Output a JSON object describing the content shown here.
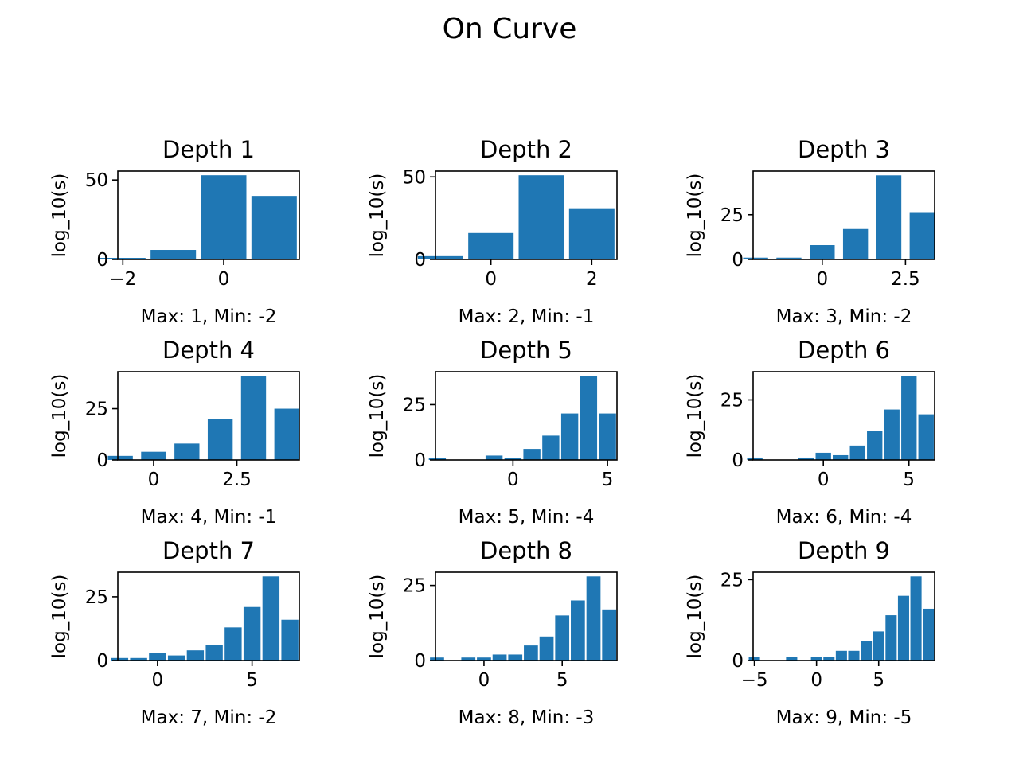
{
  "figure": {
    "title": "On Curve"
  },
  "chart_data": [
    {
      "type": "bar",
      "title": "Depth 1",
      "xlabel": "Max: 1, Min: -2",
      "ylabel": "log_10(s)",
      "x": [
        -2,
        -1,
        0,
        1
      ],
      "values": [
        1,
        6,
        53,
        40
      ],
      "bar_width": 0.9,
      "xlim": [
        -2.1,
        1.5
      ],
      "ylim": [
        0,
        55.6
      ],
      "xticks": [
        -2,
        0
      ],
      "yticks": [
        0,
        50
      ],
      "color": "#1f77b4"
    },
    {
      "type": "bar",
      "title": "Depth 2",
      "xlabel": "Max: 2, Min: -1",
      "ylabel": "log_10(s)",
      "x": [
        -1,
        0,
        1,
        2
      ],
      "values": [
        2,
        16,
        51,
        31
      ],
      "bar_width": 0.9,
      "xlim": [
        -1.1,
        2.5
      ],
      "ylim": [
        0,
        53.5
      ],
      "xticks": [
        0,
        2
      ],
      "yticks": [
        0,
        50
      ],
      "color": "#1f77b4"
    },
    {
      "type": "bar",
      "title": "Depth 3",
      "xlabel": "Max: 3, Min: -2",
      "ylabel": "log_10(s)",
      "x": [
        -2,
        -1,
        0,
        1,
        2,
        3
      ],
      "values": [
        1,
        1,
        8,
        17,
        47,
        26
      ],
      "bar_width": 0.75,
      "xlim": [
        -2.075,
        3.375
      ],
      "ylim": [
        0,
        49.35
      ],
      "xticks": [
        0.0,
        2.5
      ],
      "yticks": [
        0,
        25
      ],
      "color": "#1f77b4"
    },
    {
      "type": "bar",
      "title": "Depth 4",
      "xlabel": "Max: 4, Min: -1",
      "ylabel": "log_10(s)",
      "x": [
        -1,
        0,
        1,
        2,
        3,
        4
      ],
      "values": [
        2,
        4,
        8,
        20,
        41,
        25
      ],
      "bar_width": 0.75,
      "xlim": [
        -1.075,
        4.375
      ],
      "ylim": [
        0,
        43.05
      ],
      "xticks": [
        0.0,
        2.5
      ],
      "yticks": [
        0,
        25
      ],
      "color": "#1f77b4"
    },
    {
      "type": "bar",
      "title": "Depth 5",
      "xlabel": "Max: 5, Min: -4",
      "ylabel": "log_10(s)",
      "x": [
        -4,
        -3,
        -2,
        -1,
        0,
        1,
        2,
        3,
        4,
        5
      ],
      "values": [
        1,
        0,
        0,
        2,
        1,
        5,
        11,
        21,
        38,
        21
      ],
      "bar_width": 0.9,
      "xlim": [
        -4.1,
        5.5
      ],
      "ylim": [
        0,
        39.9
      ],
      "xticks": [
        0,
        5
      ],
      "yticks": [
        0,
        25
      ],
      "color": "#1f77b4"
    },
    {
      "type": "bar",
      "title": "Depth 6",
      "xlabel": "Max: 6, Min: -4",
      "ylabel": "log_10(s)",
      "x": [
        -4,
        -3,
        -2,
        -1,
        0,
        1,
        2,
        3,
        4,
        5,
        6
      ],
      "values": [
        1,
        0,
        0,
        1,
        3,
        2,
        6,
        12,
        21,
        35,
        19
      ],
      "bar_width": 0.9,
      "xlim": [
        -4.1,
        6.5
      ],
      "ylim": [
        0,
        36.75
      ],
      "xticks": [
        0,
        5
      ],
      "yticks": [
        0,
        25
      ],
      "color": "#1f77b4"
    },
    {
      "type": "bar",
      "title": "Depth 7",
      "xlabel": "Max: 7, Min: -2",
      "ylabel": "log_10(s)",
      "x": [
        -2,
        -1,
        0,
        1,
        2,
        3,
        4,
        5,
        6,
        7
      ],
      "values": [
        1,
        1,
        3,
        2,
        4,
        6,
        13,
        21,
        33,
        16
      ],
      "bar_width": 0.9,
      "xlim": [
        -2.1,
        7.5
      ],
      "ylim": [
        0,
        34.65
      ],
      "xticks": [
        0,
        5
      ],
      "yticks": [
        0,
        25
      ],
      "color": "#1f77b4"
    },
    {
      "type": "bar",
      "title": "Depth 8",
      "xlabel": "Max: 8, Min: -3",
      "ylabel": "log_10(s)",
      "x": [
        -3,
        -2,
        -1,
        0,
        1,
        2,
        3,
        4,
        5,
        6,
        7,
        8
      ],
      "values": [
        1,
        0,
        1,
        1,
        2,
        2,
        5,
        8,
        15,
        20,
        28,
        17
      ],
      "bar_width": 0.9,
      "xlim": [
        -3.1,
        8.5
      ],
      "ylim": [
        0,
        29.4
      ],
      "xticks": [
        0,
        5
      ],
      "yticks": [
        0,
        25
      ],
      "color": "#1f77b4"
    },
    {
      "type": "bar",
      "title": "Depth 9",
      "xlabel": "Max: 9, Min: -5",
      "ylabel": "log_10(s)",
      "x": [
        -5,
        -4,
        -3,
        -2,
        -1,
        0,
        1,
        2,
        3,
        4,
        5,
        6,
        7,
        8,
        9
      ],
      "values": [
        1,
        0,
        0,
        1,
        0,
        1,
        1,
        3,
        3,
        6,
        9,
        14,
        20,
        26,
        16
      ],
      "bar_width": 0.9,
      "xlim": [
        -5.1,
        9.5
      ],
      "ylim": [
        0,
        27.3
      ],
      "xticks": [
        -5,
        0,
        5
      ],
      "yticks": [
        0,
        25
      ],
      "color": "#1f77b4"
    }
  ]
}
